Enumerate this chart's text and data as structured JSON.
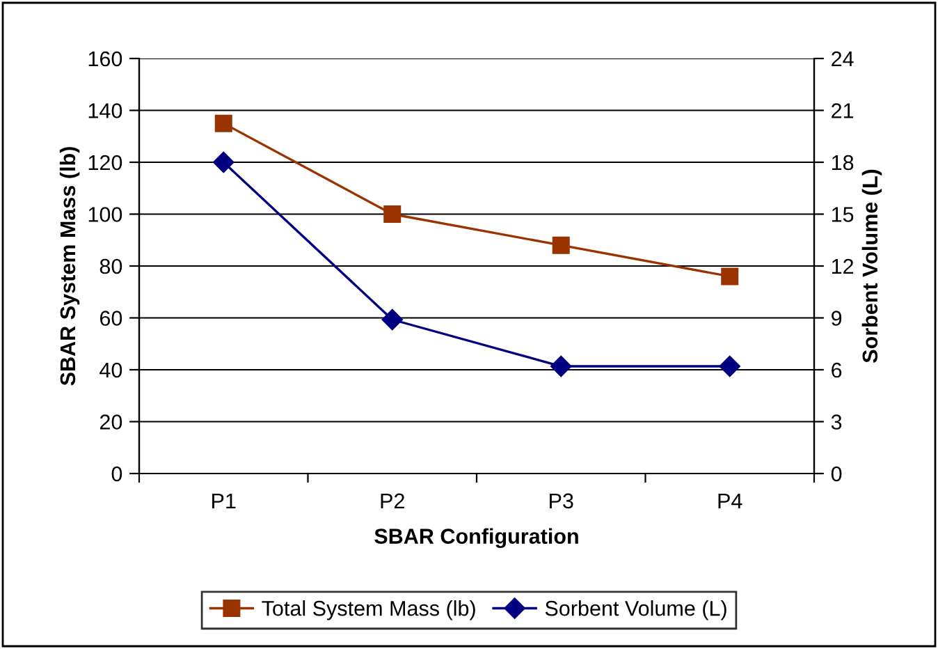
{
  "chart_data": {
    "type": "line",
    "xlabel": "SBAR Configuration",
    "ylabel": "SBAR System Mass (lb)",
    "y2label": "Sorbent Volume (L)",
    "categories": [
      "P1",
      "P2",
      "P3",
      "P4"
    ],
    "series": [
      {
        "name": "Total System Mass (lb)",
        "color": "#993300",
        "marker": "square",
        "values": [
          135,
          100,
          88,
          76
        ]
      },
      {
        "name": "Sorbent Volume (L)",
        "color": "#000080",
        "marker": "diamond",
        "axis": "y2",
        "values": [
          18,
          8.9,
          6.2,
          6.2
        ]
      }
    ],
    "ylim": [
      0,
      160
    ],
    "yticks": [
      0,
      20,
      40,
      60,
      80,
      100,
      120,
      140,
      160
    ],
    "y2lim": [
      0,
      24
    ],
    "y2ticks": [
      0,
      3,
      6,
      9,
      12,
      15,
      18,
      21,
      24
    ],
    "grid": "y",
    "legend": "bottom",
    "line_style": "solid"
  }
}
